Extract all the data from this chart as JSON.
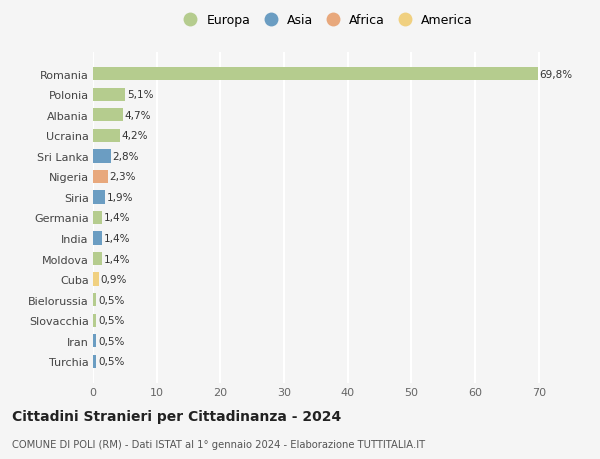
{
  "countries": [
    "Romania",
    "Polonia",
    "Albania",
    "Ucraina",
    "Sri Lanka",
    "Nigeria",
    "Siria",
    "Germania",
    "India",
    "Moldova",
    "Cuba",
    "Bielorussia",
    "Slovacchia",
    "Iran",
    "Turchia"
  ],
  "values": [
    69.8,
    5.1,
    4.7,
    4.2,
    2.8,
    2.3,
    1.9,
    1.4,
    1.4,
    1.4,
    0.9,
    0.5,
    0.5,
    0.5,
    0.5
  ],
  "labels": [
    "69,8%",
    "5,1%",
    "4,7%",
    "4,2%",
    "2,8%",
    "2,3%",
    "1,9%",
    "1,4%",
    "1,4%",
    "1,4%",
    "0,9%",
    "0,5%",
    "0,5%",
    "0,5%",
    "0,5%"
  ],
  "continents": [
    "Europa",
    "Europa",
    "Europa",
    "Europa",
    "Asia",
    "Africa",
    "Asia",
    "Europa",
    "Asia",
    "Europa",
    "America",
    "Europa",
    "Europa",
    "Asia",
    "Asia"
  ],
  "colors": {
    "Europa": "#b5cc8e",
    "Asia": "#6b9dc2",
    "Africa": "#e8a87c",
    "America": "#f0d080"
  },
  "legend_order": [
    "Europa",
    "Asia",
    "Africa",
    "America"
  ],
  "legend_colors": [
    "#b5cc8e",
    "#6b9dc2",
    "#e8a87c",
    "#f0d080"
  ],
  "title": "Cittadini Stranieri per Cittadinanza - 2024",
  "subtitle": "COMUNE DI POLI (RM) - Dati ISTAT al 1° gennaio 2024 - Elaborazione TUTTITALIA.IT",
  "xlim": [
    0,
    73
  ],
  "xticks": [
    0,
    10,
    20,
    30,
    40,
    50,
    60,
    70
  ],
  "background_color": "#f5f5f5",
  "grid_color": "#ffffff",
  "bar_height": 0.65
}
